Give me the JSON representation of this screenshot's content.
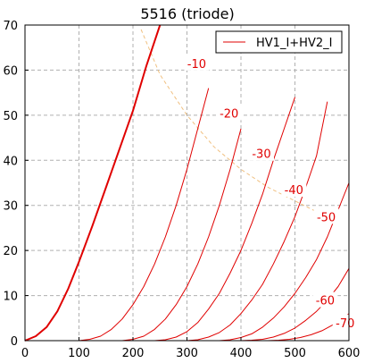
{
  "chart_data": {
    "type": "line",
    "title": "5516 (triode)",
    "xlabel": "",
    "ylabel": "",
    "xlim": [
      0,
      600
    ],
    "ylim": [
      0,
      70
    ],
    "xticks": [
      "0",
      "100",
      "200",
      "300",
      "400",
      "500",
      "600"
    ],
    "yticks": [
      "0",
      "10",
      "20",
      "30",
      "40",
      "50",
      "60",
      "70"
    ],
    "grid": true,
    "legend": {
      "position": "top-right",
      "entries": [
        "HV1_I+HV2_I"
      ]
    },
    "colors": {
      "curves": "#e00000",
      "load_line": "#f0c080",
      "grid": "#b0b0b0"
    },
    "series": [
      {
        "grid_voltage_label": "",
        "bold": true,
        "x": [
          0,
          20,
          40,
          60,
          80,
          100,
          125,
          150,
          175,
          200,
          225,
          250
        ],
        "y": [
          0,
          1,
          3,
          6.5,
          11.5,
          17.5,
          25.5,
          34,
          42.5,
          51,
          61,
          70
        ]
      },
      {
        "grid_voltage_label": "-10",
        "bold": false,
        "x": [
          100,
          120,
          140,
          160,
          180,
          200,
          220,
          240,
          260,
          280,
          300,
          320,
          340
        ],
        "y": [
          0,
          0.3,
          1,
          2.5,
          4.8,
          8,
          12,
          17,
          23,
          30,
          38,
          47,
          56
        ]
      },
      {
        "grid_voltage_label": "-20",
        "bold": false,
        "x": [
          180,
          200,
          220,
          240,
          260,
          280,
          300,
          320,
          340,
          360,
          380,
          400
        ],
        "y": [
          0,
          0.3,
          1,
          2.5,
          4.8,
          8,
          12,
          17,
          23,
          30,
          38,
          47
        ]
      },
      {
        "grid_voltage_label": "-30",
        "bold": false,
        "x": [
          240,
          260,
          280,
          300,
          320,
          340,
          360,
          380,
          400,
          420,
          440,
          460,
          480,
          500
        ],
        "y": [
          0,
          0.2,
          0.8,
          2,
          4,
          7,
          10.5,
          15,
          20,
          26,
          32.5,
          40,
          47,
          54
        ]
      },
      {
        "grid_voltage_label": "-40",
        "bold": false,
        "x": [
          300,
          320,
          340,
          360,
          380,
          400,
          420,
          440,
          460,
          480,
          500,
          520,
          540,
          560
        ],
        "y": [
          0,
          0.2,
          0.8,
          1.8,
          3.5,
          6,
          9,
          12.5,
          17,
          22,
          27.5,
          34,
          41,
          53
        ]
      },
      {
        "grid_voltage_label": "-50",
        "bold": false,
        "x": [
          360,
          380,
          400,
          420,
          440,
          460,
          480,
          500,
          520,
          540,
          560,
          580,
          600
        ],
        "y": [
          0,
          0.2,
          0.7,
          1.5,
          3,
          5,
          7.5,
          10.5,
          14,
          18,
          23,
          29,
          35
        ]
      },
      {
        "grid_voltage_label": "-60",
        "bold": false,
        "x": [
          400,
          420,
          440,
          460,
          480,
          500,
          520,
          540,
          560,
          580,
          600
        ],
        "y": [
          0,
          0.1,
          0.3,
          0.8,
          1.6,
          2.8,
          4.5,
          6.5,
          9,
          12,
          16
        ]
      },
      {
        "grid_voltage_label": "-70",
        "bold": false,
        "x": [
          450,
          470,
          490,
          510,
          530,
          550,
          570,
          590,
          600
        ],
        "y": [
          0,
          0.1,
          0.3,
          0.7,
          1.3,
          2.2,
          3.5,
          5,
          6
        ]
      }
    ],
    "load_line": {
      "x": [
        215,
        250,
        300,
        350,
        400,
        450,
        500,
        550,
        560
      ],
      "y": [
        69,
        59,
        50,
        43,
        38,
        34,
        31,
        28,
        27
      ]
    },
    "curve_label_positions": [
      {
        "text": "-10",
        "x": 318,
        "y": 61.5
      },
      {
        "text": "-20",
        "x": 378,
        "y": 50.5
      },
      {
        "text": "-30",
        "x": 438,
        "y": 41.5
      },
      {
        "text": "-40",
        "x": 498,
        "y": 33.5
      },
      {
        "text": "-50",
        "x": 558,
        "y": 27.5
      },
      {
        "text": "-60",
        "x": 556,
        "y": 9
      },
      {
        "text": "-70",
        "x": 593,
        "y": 4
      }
    ]
  }
}
